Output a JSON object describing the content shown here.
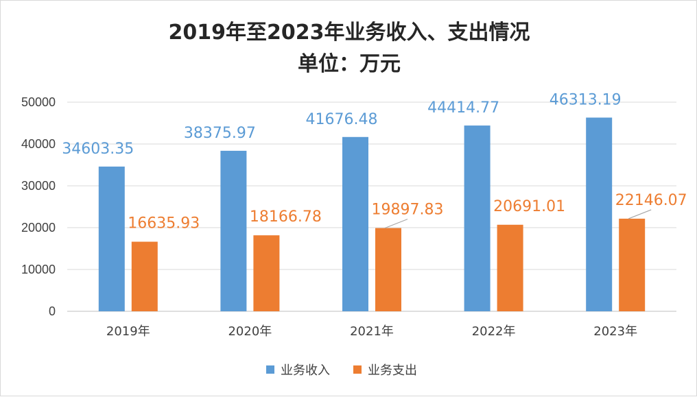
{
  "chart_data": {
    "type": "bar",
    "title": "2019年至2023年业务收入、支出情况",
    "subtitle": "单位：万元",
    "categories": [
      "2019年",
      "2020年",
      "2021年",
      "2022年",
      "2023年"
    ],
    "ylim": [
      0,
      50000
    ],
    "yticks": [
      "0",
      "10000",
      "20000",
      "30000",
      "40000",
      "50000"
    ],
    "grid": true,
    "legend_position": "bottom",
    "series": [
      {
        "name": "业务收入",
        "color": "#5b9bd5",
        "values": [
          34603.35,
          38375.97,
          41676.48,
          44414.77,
          46313.19
        ],
        "labels": [
          "34603.35",
          "38375.97",
          "41676.48",
          "44414.77",
          "46313.19"
        ]
      },
      {
        "name": "业务支出",
        "color": "#ed7d31",
        "values": [
          16635.93,
          18166.78,
          19897.83,
          20691.01,
          22146.07
        ],
        "labels": [
          "16635.93",
          "18166.78",
          "19897.83",
          "20691.01",
          "22146.07"
        ]
      }
    ]
  }
}
